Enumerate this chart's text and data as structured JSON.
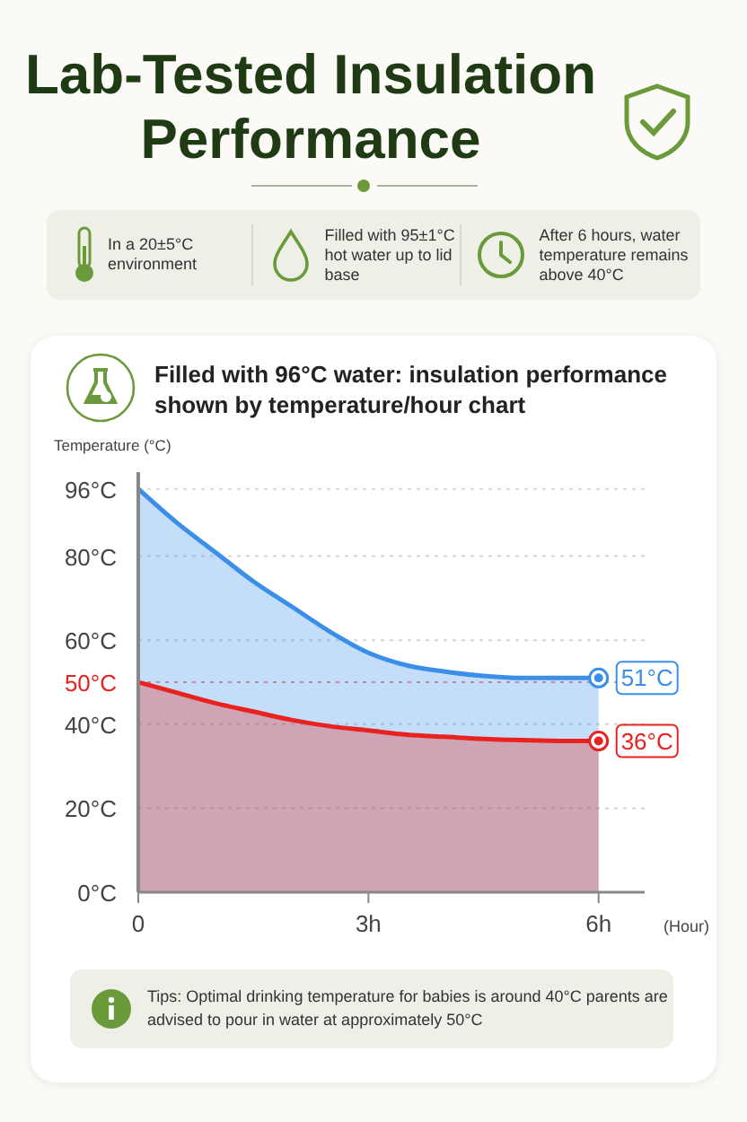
{
  "chart_data": {
    "type": "area",
    "title": "Lab-Tested Insulation Performance",
    "subtitle": "Filled with 96°C water: insulation performance shown by temperature/hour chart",
    "ylabel": "Temperature (°C)",
    "xlabel": "(Hour)",
    "annotations": [
      "In a 20±5°C environment",
      "Filled with 95±1°C hot water up to lid base",
      "After 6 hours, water temperature remains above 40°C",
      "Tips: Optimal drinking temperature for babies is around 40°C parents are advised to pour in water at approximately 50°C"
    ],
    "x": [
      0,
      0.5,
      1,
      1.5,
      2,
      2.5,
      3,
      3.5,
      4,
      4.5,
      5,
      5.5,
      6
    ],
    "series": [
      {
        "color": "#3b8fe8",
        "values": [
          96,
          88,
          81,
          74,
          68,
          62,
          57,
          54,
          52.5,
          51.5,
          51,
          51,
          51
        ],
        "value_labels": [
          null,
          null,
          null,
          null,
          null,
          null,
          null,
          null,
          null,
          null,
          null,
          null,
          "51°C"
        ]
      },
      {
        "color": "#e8231f",
        "values": [
          50,
          47.5,
          45,
          43,
          41,
          39.5,
          38.5,
          37.5,
          37,
          36.5,
          36.2,
          36,
          36
        ],
        "value_labels": [
          null,
          null,
          null,
          null,
          null,
          null,
          null,
          null,
          null,
          null,
          null,
          null,
          "36°C"
        ]
      }
    ],
    "xlim": [
      0,
      6.6
    ],
    "xticks": [
      {
        "value": 0,
        "label": "0"
      },
      {
        "value": 3,
        "label": "3h"
      },
      {
        "value": 6,
        "label": "6h"
      }
    ],
    "ylim": [
      0,
      100
    ],
    "yticks": [
      {
        "value": 0,
        "label": "0°C"
      },
      {
        "value": 20,
        "label": "20°C"
      },
      {
        "value": 40,
        "label": "40°C"
      },
      {
        "value": 50,
        "label": "50°C"
      },
      {
        "value": 60,
        "label": "60°C"
      },
      {
        "value": 80,
        "label": "80°C"
      },
      {
        "value": 96,
        "label": "96°C"
      }
    ],
    "ref_lines": [
      {
        "axis": "y",
        "value": 50,
        "label": null,
        "color": "#e8231f",
        "line_style": "dotted"
      }
    ],
    "grid": "y"
  }
}
